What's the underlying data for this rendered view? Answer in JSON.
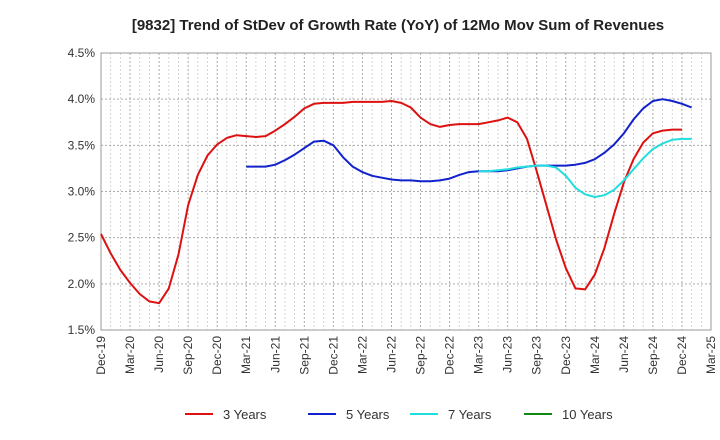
{
  "chart_data": {
    "type": "line",
    "title": "[9832]  Trend of StDev of Growth Rate (YoY) of 12Mo Mov Sum of Revenues",
    "xlabel": "",
    "ylabel": "",
    "ylim": [
      1.5,
      4.5
    ],
    "yticks": [
      "1.5%",
      "2.0%",
      "2.5%",
      "3.0%",
      "3.5%",
      "4.0%",
      "4.5%"
    ],
    "xticks": [
      "Dec-19",
      "Mar-20",
      "Jun-20",
      "Sep-20",
      "Dec-20",
      "Mar-21",
      "Jun-21",
      "Sep-21",
      "Dec-21",
      "Mar-22",
      "Jun-22",
      "Sep-22",
      "Dec-22",
      "Mar-23",
      "Jun-23",
      "Sep-23",
      "Dec-23",
      "Mar-24",
      "Jun-24",
      "Sep-24",
      "Dec-24",
      "Mar-25"
    ],
    "x_start": "Dec-19",
    "months_total": 63,
    "series": [
      {
        "name": "3 Years",
        "color": "#dd1111",
        "start_month": 0,
        "values": [
          2.54,
          2.33,
          2.15,
          2.01,
          1.89,
          1.81,
          1.79,
          1.95,
          2.32,
          2.85,
          3.18,
          3.39,
          3.51,
          3.58,
          3.61,
          3.6,
          3.59,
          3.6,
          3.66,
          3.73,
          3.81,
          3.9,
          3.95,
          3.96,
          3.96,
          3.96,
          3.97,
          3.97,
          3.97,
          3.97,
          3.98,
          3.96,
          3.91,
          3.8,
          3.73,
          3.7,
          3.72,
          3.73,
          3.73,
          3.73,
          3.75,
          3.77,
          3.8,
          3.75,
          3.57,
          3.22,
          2.85,
          2.48,
          2.17,
          1.95,
          1.94,
          2.1,
          2.39,
          2.76,
          3.1,
          3.35,
          3.53,
          3.63,
          3.66,
          3.67,
          3.67
        ]
      },
      {
        "name": "5 Years",
        "color": "#1122cc",
        "start_month": 15,
        "values": [
          3.27,
          3.27,
          3.27,
          3.29,
          3.34,
          3.4,
          3.47,
          3.54,
          3.55,
          3.5,
          3.37,
          3.27,
          3.21,
          3.17,
          3.15,
          3.13,
          3.12,
          3.12,
          3.11,
          3.11,
          3.12,
          3.14,
          3.18,
          3.21,
          3.22,
          3.22,
          3.22,
          3.23,
          3.25,
          3.27,
          3.28,
          3.28,
          3.28,
          3.28,
          3.29,
          3.31,
          3.35,
          3.42,
          3.51,
          3.63,
          3.78,
          3.9,
          3.98,
          4.0,
          3.98,
          3.95,
          3.91
        ]
      },
      {
        "name": "7 Years",
        "color": "#22dddd",
        "start_month": 39,
        "values": [
          3.22,
          3.22,
          3.23,
          3.24,
          3.26,
          3.27,
          3.28,
          3.28,
          3.26,
          3.17,
          3.04,
          2.97,
          2.94,
          2.96,
          3.02,
          3.12,
          3.24,
          3.36,
          3.46,
          3.52,
          3.56,
          3.57,
          3.57
        ]
      },
      {
        "name": "10 Years",
        "color": "#118811",
        "start_month": 0,
        "values": []
      }
    ],
    "legend": "bottom"
  }
}
